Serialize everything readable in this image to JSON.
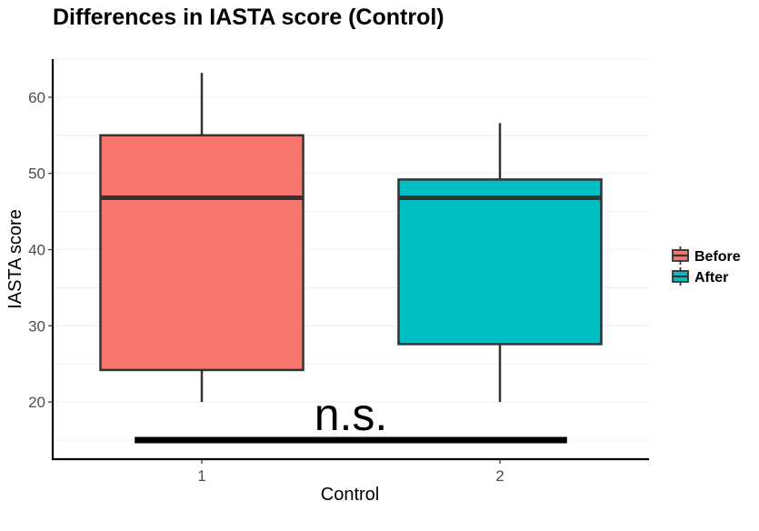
{
  "chart_data": {
    "type": "box",
    "title": "Differences in IASTA score (Control)",
    "xlabel": "Control",
    "ylabel": "IASTA score",
    "categories": [
      "1",
      "2"
    ],
    "ylim": [
      12.5,
      65
    ],
    "yticks": [
      20,
      30,
      40,
      50,
      60
    ],
    "series": [
      {
        "name": "Before",
        "color": "#F8766D",
        "category": "1",
        "min": 20,
        "q1": 24.2,
        "median": 46.8,
        "q3": 55,
        "max": 63.2
      },
      {
        "name": "After",
        "color": "#00BFC4",
        "category": "2",
        "min": 20,
        "q1": 27.6,
        "median": 46.8,
        "q3": 49.2,
        "max": 56.6
      }
    ],
    "legend_position": "right",
    "grid": true,
    "annotation": {
      "text": "n.s.",
      "y": 15
    }
  }
}
